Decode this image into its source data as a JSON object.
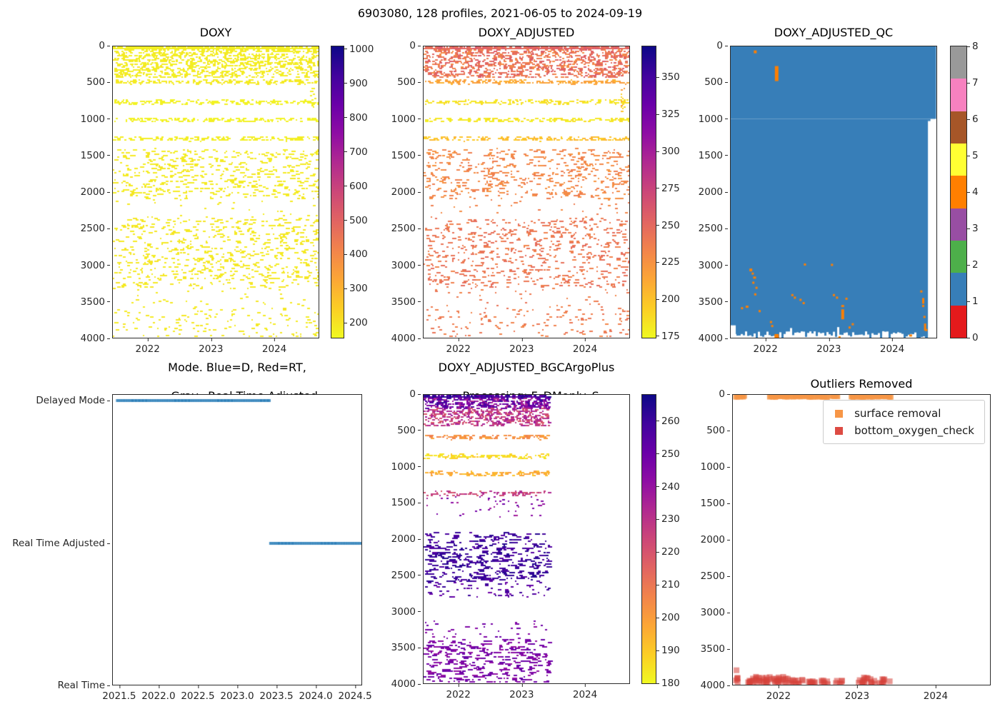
{
  "suptitle": "6903080, 128 profiles, 2021-06-05 to 2024-09-19",
  "colors": {
    "plasma": [
      "#0d0887",
      "#41049d",
      "#6a00a8",
      "#8f0da4",
      "#b12a90",
      "#cc4778",
      "#e16462",
      "#f2844b",
      "#fca636",
      "#fcce25",
      "#f0f921"
    ],
    "set1": [
      "#e41a1c",
      "#377eb8",
      "#4daf4a",
      "#984ea3",
      "#ff7f00",
      "#ffff33",
      "#a65628",
      "#f781bf",
      "#999999"
    ],
    "mode_line": "#1f77b4",
    "qc_fill": "#377eb8",
    "qc_flag": "#ff7f00",
    "surface_marker": "#f79646",
    "bottom_marker": "#dd4b43"
  },
  "chart_data": [
    {
      "id": "doxy",
      "type": "scatter",
      "title": "DOXY",
      "x": {
        "lim": [
          2021.44,
          2024.71
        ],
        "ticks": [
          2022,
          2023,
          2024
        ],
        "tick_labels": [
          "2022",
          "2023",
          "2024"
        ]
      },
      "y": {
        "lim": [
          4000,
          0
        ],
        "ticks": [
          0,
          500,
          1000,
          1500,
          2000,
          2500,
          3000,
          3500,
          4000
        ],
        "tick_labels": [
          "0",
          "500",
          "1000",
          "1500",
          "2000",
          "2500",
          "3000",
          "3500",
          "4000"
        ]
      },
      "colorbar": {
        "cmap": "plasma_r",
        "vmin": 157,
        "vmax": 1008,
        "ticks": [
          200,
          300,
          400,
          500,
          600,
          700,
          800,
          900,
          1000
        ],
        "tick_labels": [
          "200",
          "300",
          "400",
          "500",
          "600",
          "700",
          "800",
          "900",
          "1000"
        ]
      },
      "bands": [
        {
          "d0": 5,
          "d1": 30,
          "n": 700,
          "v": 178,
          "vj": 8,
          "wmax": 5
        },
        {
          "d0": 30,
          "d1": 420,
          "n": 980,
          "v": 182,
          "vj": 12,
          "wmax": 5
        },
        {
          "d0": 455,
          "d1": 505,
          "n": 175,
          "v": 185,
          "vj": 8,
          "wmax": 5
        },
        {
          "d0": 730,
          "d1": 780,
          "n": 165,
          "v": 172,
          "vj": 6,
          "wmax": 5
        },
        {
          "d0": 975,
          "d1": 1025,
          "n": 160,
          "v": 172,
          "vj": 6,
          "wmax": 5
        },
        {
          "d0": 1235,
          "d1": 1285,
          "n": 155,
          "v": 178,
          "vj": 6,
          "wmax": 5
        },
        {
          "d0": 1400,
          "d1": 2080,
          "n": 520,
          "v": 186,
          "vj": 10,
          "wmax": 6
        },
        {
          "d0": 2080,
          "d1": 2350,
          "n": 30,
          "v": 186,
          "vj": 8,
          "wmax": 4
        },
        {
          "d0": 2350,
          "d1": 3300,
          "n": 660,
          "v": 190,
          "vj": 10,
          "wmax": 6
        },
        {
          "d0": 3300,
          "d1": 3580,
          "n": 40,
          "v": 188,
          "vj": 8,
          "wmax": 4
        },
        {
          "d0": 3580,
          "d1": 4000,
          "n": 135,
          "v": 188,
          "vj": 8,
          "wmax": 5
        },
        {
          "x0": 2024.56,
          "x1": 2024.64,
          "d0": 560,
          "d1": 900,
          "n": 14,
          "v": 178,
          "vj": 6,
          "wmax": 3
        }
      ]
    },
    {
      "id": "doxy_adjusted",
      "type": "scatter",
      "title": "DOXY_ADJUSTED",
      "x": {
        "lim": [
          2021.44,
          2024.71
        ],
        "ticks": [
          2022,
          2023,
          2024
        ],
        "tick_labels": [
          "2022",
          "2023",
          "2024"
        ]
      },
      "y": {
        "lim": [
          4000,
          0
        ],
        "ticks": [
          0,
          500,
          1000,
          1500,
          2000,
          2500,
          3000,
          3500,
          4000
        ],
        "tick_labels": [
          "0",
          "500",
          "1000",
          "1500",
          "2000",
          "2500",
          "3000",
          "3500",
          "4000"
        ]
      },
      "colorbar": {
        "cmap": "plasma_r",
        "vmin": 174,
        "vmax": 371,
        "ticks": [
          175,
          200,
          225,
          250,
          275,
          300,
          325,
          350
        ],
        "tick_labels": [
          "175",
          "200",
          "225",
          "250",
          "275",
          "300",
          "325",
          "350"
        ]
      },
      "bands": [
        {
          "d0": 5,
          "d1": 30,
          "n": 700,
          "v": 252,
          "vj": 10,
          "wmax": 5
        },
        {
          "d0": 30,
          "d1": 420,
          "n": 980,
          "v": 243,
          "vj": 16,
          "wmax": 5
        },
        {
          "d0": 455,
          "d1": 505,
          "n": 175,
          "v": 214,
          "vj": 8,
          "wmax": 5
        },
        {
          "d0": 730,
          "d1": 780,
          "n": 165,
          "v": 184,
          "vj": 5,
          "wmax": 5
        },
        {
          "d0": 975,
          "d1": 1025,
          "n": 160,
          "v": 182,
          "vj": 5,
          "wmax": 5
        },
        {
          "d0": 1235,
          "d1": 1285,
          "n": 155,
          "v": 200,
          "vj": 8,
          "wmax": 5
        },
        {
          "d0": 1400,
          "d1": 2080,
          "n": 520,
          "v": 231,
          "vj": 8,
          "wmax": 6
        },
        {
          "d0": 2080,
          "d1": 2350,
          "n": 30,
          "v": 233,
          "vj": 6,
          "wmax": 4
        },
        {
          "d0": 2350,
          "d1": 3300,
          "n": 660,
          "v": 241,
          "vj": 8,
          "wmax": 6
        },
        {
          "d0": 3300,
          "d1": 3580,
          "n": 40,
          "v": 238,
          "vj": 6,
          "wmax": 4
        },
        {
          "d0": 3580,
          "d1": 4000,
          "n": 135,
          "v": 238,
          "vj": 6,
          "wmax": 5
        },
        {
          "x0": 2024.56,
          "x1": 2024.64,
          "d0": 560,
          "d1": 900,
          "n": 14,
          "v": 205,
          "vj": 20,
          "wmax": 3
        }
      ]
    },
    {
      "id": "doxy_adjusted_qc",
      "type": "qc",
      "title": "DOXY_ADJUSTED_QC",
      "x": {
        "lim": [
          2021.44,
          2024.71
        ],
        "ticks": [
          2022,
          2023,
          2024
        ],
        "tick_labels": [
          "2022",
          "2023",
          "2024"
        ]
      },
      "y": {
        "lim": [
          4000,
          0
        ],
        "ticks": [
          0,
          500,
          1000,
          1500,
          2000,
          2500,
          3000,
          3500,
          4000
        ],
        "tick_labels": [
          "0",
          "500",
          "1000",
          "1500",
          "2000",
          "2500",
          "3000",
          "3500",
          "4000"
        ]
      },
      "colorbar": {
        "cmap": "set1_discrete",
        "ticks": [
          0,
          1,
          2,
          3,
          4,
          5,
          6,
          7,
          8
        ],
        "tick_labels": [
          "0",
          "1",
          "2",
          "3",
          "4",
          "5",
          "6",
          "7",
          "8"
        ]
      },
      "fill_value": 1,
      "regions": [
        {
          "x0": 2021.44,
          "x1": 2024.705,
          "d0": 0,
          "d1": 995
        },
        {
          "x0": 2021.44,
          "x1": 2024.575,
          "d0": 995,
          "d1": 4000
        },
        {
          "x0": 2024.575,
          "x1": 2024.615,
          "d0": 995,
          "d1": 1025
        }
      ],
      "white_patches": [
        {
          "x0": 2021.44,
          "x1": 2021.52,
          "d0": 3830,
          "d1": 4000
        }
      ],
      "flag_marks": [
        {
          "x": 2021.83,
          "d": 55,
          "w": 4,
          "h": 4
        },
        {
          "x": 2022.17,
          "d": 270,
          "w": 5,
          "h": 21
        },
        {
          "x": 2021.7,
          "d": 3560,
          "w": 4,
          "h": 3
        },
        {
          "x": 2021.62,
          "d": 3580,
          "w": 3,
          "h": 3
        },
        {
          "x": 2021.76,
          "d": 3050,
          "w": 4,
          "h": 4
        },
        {
          "x": 2021.79,
          "d": 3105,
          "w": 3,
          "h": 3
        },
        {
          "x": 2021.82,
          "d": 3160,
          "w": 4,
          "h": 3
        },
        {
          "x": 2021.8,
          "d": 3230,
          "w": 3,
          "h": 3
        },
        {
          "x": 2021.85,
          "d": 3300,
          "w": 3,
          "h": 3
        },
        {
          "x": 2021.83,
          "d": 3390,
          "w": 3,
          "h": 3
        },
        {
          "x": 2021.9,
          "d": 3620,
          "w": 3,
          "h": 3
        },
        {
          "x": 2022.08,
          "d": 3770,
          "w": 3,
          "h": 3
        },
        {
          "x": 2022.1,
          "d": 3825,
          "w": 3,
          "h": 3
        },
        {
          "x": 2022.17,
          "d": 3950,
          "w": 6,
          "h": 6
        },
        {
          "x": 2022.18,
          "d": 3990,
          "w": 5,
          "h": 4
        },
        {
          "x": 2022.42,
          "d": 3400,
          "w": 3,
          "h": 3
        },
        {
          "x": 2022.46,
          "d": 3435,
          "w": 3,
          "h": 3
        },
        {
          "x": 2022.55,
          "d": 3465,
          "w": 3,
          "h": 3
        },
        {
          "x": 2022.6,
          "d": 3510,
          "w": 3,
          "h": 3
        },
        {
          "x": 2022.62,
          "d": 2980,
          "w": 3,
          "h": 3
        },
        {
          "x": 2023.05,
          "d": 2985,
          "w": 3,
          "h": 3
        },
        {
          "x": 2023.08,
          "d": 3400,
          "w": 3,
          "h": 3
        },
        {
          "x": 2023.13,
          "d": 3435,
          "w": 3,
          "h": 3
        },
        {
          "x": 2023.22,
          "d": 3550,
          "w": 4,
          "h": 3
        },
        {
          "x": 2023.22,
          "d": 3610,
          "w": 4,
          "h": 14
        },
        {
          "x": 2023.28,
          "d": 3450,
          "w": 3,
          "h": 3
        },
        {
          "x": 2023.33,
          "d": 3845,
          "w": 3,
          "h": 3
        },
        {
          "x": 2023.38,
          "d": 3800,
          "w": 3,
          "h": 3
        },
        {
          "x": 2023.17,
          "d": 3980,
          "w": 3,
          "h": 3
        },
        {
          "x": 2024.47,
          "d": 3350,
          "w": 3,
          "h": 3
        },
        {
          "x": 2024.5,
          "d": 3455,
          "w": 3,
          "h": 8
        },
        {
          "x": 2024.5,
          "d": 3550,
          "w": 3,
          "h": 3
        },
        {
          "x": 2024.52,
          "d": 3700,
          "w": 3,
          "h": 3
        },
        {
          "x": 2024.53,
          "d": 3805,
          "w": 3,
          "h": 10
        },
        {
          "x": 2024.55,
          "d": 3880,
          "w": 3,
          "h": 3
        },
        {
          "x": 2024.3,
          "d": 3955,
          "w": 4,
          "h": 3
        }
      ]
    },
    {
      "id": "mode",
      "type": "category-lines",
      "title_lines": [
        "Mode. Blue=D, Red=RT,",
        "Gray=Real Time Adjusted"
      ],
      "x": {
        "lim": [
          2021.41,
          2024.59
        ],
        "ticks": [
          2021.5,
          2022.0,
          2022.5,
          2023.0,
          2023.5,
          2024.0,
          2024.5
        ],
        "tick_labels": [
          "2021.5",
          "2022.0",
          "2022.5",
          "2023.0",
          "2023.5",
          "2024.0",
          "2024.5"
        ]
      },
      "y": {
        "categories": [
          "Delayed Mode",
          "Real Time Adjusted",
          "Real Time"
        ]
      },
      "segments": [
        {
          "category": "Delayed Mode",
          "x0": 2021.45,
          "x1": 2023.41
        },
        {
          "category": "Real Time Adjusted",
          "x0": 2023.41,
          "x1": 2024.59
        }
      ]
    },
    {
      "id": "doxy_adjusted_bgcargoplus",
      "type": "scatter",
      "title_lines": [
        "DOXY_ADJUSTED_BGCArgoPlus",
        "Processing: F_DMonly_S_"
      ],
      "x": {
        "lim": [
          2021.44,
          2024.71
        ],
        "ticks": [
          2022,
          2023,
          2024
        ],
        "tick_labels": [
          "2022",
          "2023",
          "2024"
        ]
      },
      "y": {
        "lim": [
          4000,
          0
        ],
        "ticks": [
          0,
          500,
          1000,
          1500,
          2000,
          2500,
          3000,
          3500,
          4000
        ],
        "tick_labels": [
          "0",
          "500",
          "1000",
          "1500",
          "2000",
          "2500",
          "3000",
          "3500",
          "4000"
        ]
      },
      "colorbar": {
        "cmap": "plasma_r",
        "vmin": 180,
        "vmax": 268,
        "ticks": [
          180,
          190,
          200,
          210,
          220,
          230,
          240,
          250,
          260
        ],
        "tick_labels": [
          "180",
          "190",
          "200",
          "210",
          "220",
          "230",
          "240",
          "250",
          "260"
        ]
      },
      "data_x_end": 2023.42,
      "bands": [
        {
          "x1": 2023.42,
          "d0": 5,
          "d1": 30,
          "n": 430,
          "v": 258,
          "vj": 8,
          "wmax": 5
        },
        {
          "x1": 2023.42,
          "d0": 30,
          "d1": 180,
          "n": 400,
          "v": 247,
          "vj": 14,
          "wmax": 5
        },
        {
          "x1": 2023.42,
          "d0": 180,
          "d1": 420,
          "n": 440,
          "v": 228,
          "vj": 10,
          "wmax": 5
        },
        {
          "x1": 2023.42,
          "d0": 545,
          "d1": 605,
          "n": 115,
          "v": 203,
          "vj": 5,
          "wmax": 5
        },
        {
          "x1": 2023.42,
          "d0": 815,
          "d1": 870,
          "n": 115,
          "v": 186,
          "vj": 4,
          "wmax": 5
        },
        {
          "x1": 2023.42,
          "d0": 1055,
          "d1": 1110,
          "n": 115,
          "v": 196,
          "vj": 5,
          "wmax": 5
        },
        {
          "x1": 2023.42,
          "d0": 1330,
          "d1": 1390,
          "n": 95,
          "v": 226,
          "vj": 8,
          "wmax": 5
        },
        {
          "x1": 2023.42,
          "d0": 1400,
          "d1": 1680,
          "n": 45,
          "v": 243,
          "vj": 8,
          "wmax": 4
        },
        {
          "x1": 2023.42,
          "d0": 1900,
          "d1": 2180,
          "n": 150,
          "v": 259,
          "vj": 6,
          "wmax": 8
        },
        {
          "x1": 2023.42,
          "d0": 2180,
          "d1": 2580,
          "n": 260,
          "v": 260,
          "vj": 5,
          "wmax": 9
        },
        {
          "x1": 2023.42,
          "d0": 2580,
          "d1": 2800,
          "n": 70,
          "v": 255,
          "vj": 6,
          "wmax": 6
        },
        {
          "x1": 2023.42,
          "d0": 3120,
          "d1": 3380,
          "n": 42,
          "v": 246,
          "vj": 5,
          "wmax": 5
        },
        {
          "x1": 2023.42,
          "d0": 3380,
          "d1": 3950,
          "n": 340,
          "v": 246,
          "vj": 6,
          "wmax": 8
        },
        {
          "x1": 2023.42,
          "d0": 3950,
          "d1": 4000,
          "n": 22,
          "v": 246,
          "vj": 5,
          "wmax": 5
        }
      ]
    },
    {
      "id": "outliers_removed",
      "type": "outliers",
      "title": "Outliers Removed",
      "x": {
        "lim": [
          2021.41,
          2024.7
        ],
        "ticks": [
          2022,
          2023,
          2024
        ],
        "tick_labels": [
          "2022",
          "2023",
          "2024"
        ]
      },
      "y": {
        "lim": [
          4000,
          0
        ],
        "ticks": [
          0,
          500,
          1000,
          1500,
          2000,
          2500,
          3000,
          3500,
          4000
        ],
        "tick_labels": [
          "0",
          "500",
          "1000",
          "1500",
          "2000",
          "2500",
          "3000",
          "3500",
          "4000"
        ]
      },
      "legend": [
        {
          "label": "surface removal",
          "marker": "square",
          "color": "#f79646"
        },
        {
          "label": "bottom_oxygen_check",
          "marker": "square",
          "color": "#dd4b43"
        }
      ],
      "surface_depth": 25,
      "surface_segments": [
        [
          2021.45,
          2021.57
        ],
        [
          2021.88,
          2022.14
        ],
        [
          2022.17,
          2022.45
        ],
        [
          2022.48,
          2022.63
        ],
        [
          2022.67,
          2022.76
        ],
        [
          2022.92,
          2023.44
        ]
      ],
      "bottom_clusters": [
        {
          "x0": 2021.44,
          "x1": 2021.49,
          "n": 5,
          "d0": 3900,
          "d1": 3990
        },
        {
          "x0": 2021.45,
          "x1": 2021.47,
          "n": 1,
          "d0": 3790,
          "d1": 3810
        },
        {
          "x0": 2021.6,
          "x1": 2022.06,
          "n": 42,
          "d0": 3890,
          "d1": 3990
        },
        {
          "x0": 2022.06,
          "x1": 2022.32,
          "n": 16,
          "d0": 3910,
          "d1": 3995
        },
        {
          "x0": 2022.35,
          "x1": 2022.47,
          "n": 9,
          "d0": 3920,
          "d1": 3990
        },
        {
          "x0": 2022.52,
          "x1": 2022.64,
          "n": 7,
          "d0": 3940,
          "d1": 3995
        },
        {
          "x0": 2022.72,
          "x1": 2022.83,
          "n": 6,
          "d0": 3940,
          "d1": 3990
        },
        {
          "x0": 2023.0,
          "x1": 2023.2,
          "n": 16,
          "d0": 3900,
          "d1": 3990
        },
        {
          "x0": 2023.2,
          "x1": 2023.37,
          "n": 10,
          "d0": 3920,
          "d1": 3990
        },
        {
          "x0": 2023.41,
          "x1": 2023.44,
          "n": 1,
          "d0": 3950,
          "d1": 3970
        }
      ]
    }
  ]
}
